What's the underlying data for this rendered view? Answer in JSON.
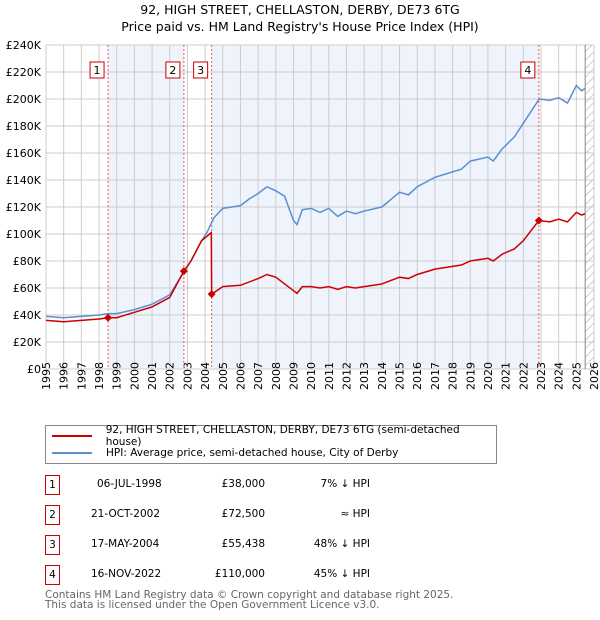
{
  "chart_data": {
    "type": "line",
    "title": "92, HIGH STREET, CHELLASTON, DERBY, DE73 6TG",
    "subtitle": "Price paid vs. HM Land Registry's House Price Index (HPI)",
    "xlim": [
      1995,
      2026
    ],
    "ylim": [
      0,
      240000
    ],
    "x_ticks": [
      "1995",
      "1996",
      "1997",
      "1998",
      "1999",
      "2000",
      "2001",
      "2002",
      "2003",
      "2004",
      "2005",
      "2006",
      "2007",
      "2008",
      "2009",
      "2010",
      "2011",
      "2012",
      "2013",
      "2014",
      "2015",
      "2016",
      "2017",
      "2018",
      "2019",
      "2020",
      "2021",
      "2022",
      "2023",
      "2024",
      "2025",
      "2026"
    ],
    "y_ticks": [
      "£0",
      "£20K",
      "£40K",
      "£60K",
      "£80K",
      "£100K",
      "£120K",
      "£140K",
      "£160K",
      "£180K",
      "£200K",
      "£220K",
      "£240K"
    ],
    "grid": true,
    "series": [
      {
        "name": "92, HIGH STREET, CHELLASTON, DERBY, DE73 6TG (semi-detached house)",
        "color": "#cc0000",
        "x": [
          1995,
          1996,
          1997,
          1998,
          1998.5,
          1999,
          2000,
          2001,
          2002,
          2002.8,
          2003.2,
          2003.8,
          2004.35,
          2004.37,
          2005,
          2006,
          2007,
          2007.5,
          2008,
          2009,
          2009.2,
          2009.5,
          2010,
          2010.5,
          2011,
          2011.5,
          2012,
          2012.5,
          2013,
          2014,
          2015,
          2015.5,
          2016,
          2017,
          2018,
          2018.5,
          2019,
          2020,
          2020.3,
          2020.8,
          2021.5,
          2022,
          2022.88,
          2023.5,
          2024,
          2024.5,
          2025,
          2025.3,
          2025.5
        ],
        "y": [
          36000,
          35000,
          36000,
          37000,
          38000,
          38000,
          42000,
          46000,
          53000,
          72500,
          80000,
          95000,
          101000,
          55438,
          61000,
          62000,
          67000,
          70000,
          68000,
          58000,
          56000,
          61000,
          61000,
          60000,
          61000,
          59000,
          61000,
          60000,
          61000,
          63000,
          68000,
          67000,
          70000,
          74000,
          76000,
          77000,
          80000,
          82000,
          80000,
          85000,
          89000,
          95000,
          110000,
          109000,
          111000,
          109000,
          116000,
          114000,
          115000
        ]
      },
      {
        "name": "HPI: Average price, semi-detached house, City of Derby",
        "color": "#5b8fd0",
        "x": [
          1995,
          1996,
          1997,
          1998,
          1998.5,
          1999,
          2000,
          2001,
          2002,
          2002.8,
          2003.2,
          2003.8,
          2004.1,
          2004.5,
          2005,
          2006,
          2006.5,
          2007,
          2007.5,
          2008,
          2008.5,
          2009,
          2009.2,
          2009.5,
          2010,
          2010.5,
          2011,
          2011.5,
          2012,
          2012.5,
          2013,
          2014,
          2015,
          2015.5,
          2016,
          2017,
          2018,
          2018.5,
          2019,
          2020,
          2020.3,
          2020.8,
          2021.5,
          2022,
          2022.9,
          2023.5,
          2024,
          2024.5,
          2025,
          2025.3,
          2025.5
        ],
        "y": [
          39000,
          38000,
          39000,
          40000,
          41000,
          41000,
          44000,
          48000,
          55000,
          72000,
          80000,
          95000,
          101000,
          112000,
          119000,
          121000,
          126000,
          130000,
          135000,
          132000,
          128000,
          110000,
          107000,
          118000,
          119000,
          116000,
          119000,
          113000,
          117000,
          115000,
          117000,
          120000,
          131000,
          129000,
          135000,
          142000,
          146000,
          148000,
          154000,
          157000,
          154000,
          163000,
          172000,
          182000,
          200000,
          199000,
          201000,
          197000,
          210000,
          206000,
          208000
        ]
      }
    ],
    "sales": [
      {
        "label": "1",
        "x": 1998.51,
        "y": 38000,
        "date": "06-JUL-1998",
        "price": "£38,000",
        "hpi": "7% ↓ HPI"
      },
      {
        "label": "2",
        "x": 2002.8,
        "y": 72500,
        "date": "21-OCT-2002",
        "price": "£72,500",
        "hpi": "≈ HPI"
      },
      {
        "label": "3",
        "x": 2004.37,
        "y": 55438,
        "date": "17-MAY-2004",
        "price": "£55,438",
        "hpi": "48% ↓ HPI"
      },
      {
        "label": "4",
        "x": 2022.88,
        "y": 110000,
        "date": "16-NOV-2022",
        "price": "£110,000",
        "hpi": "45% ↓ HPI"
      }
    ],
    "legend_position": "below"
  },
  "footer": {
    "line1": "Contains HM Land Registry data © Crown copyright and database right 2025.",
    "line2": "This data is licensed under the Open Government Licence v3.0."
  }
}
